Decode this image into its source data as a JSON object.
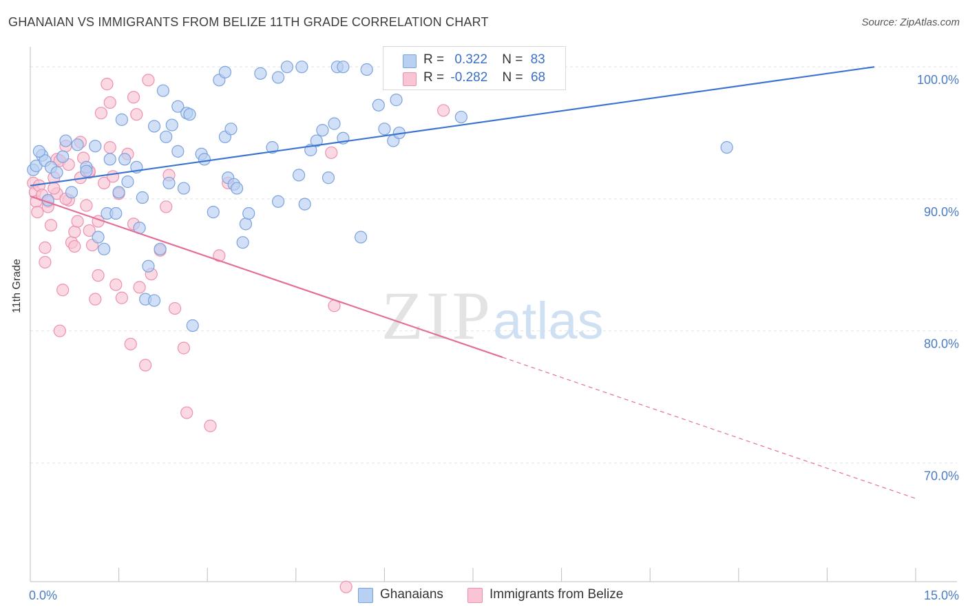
{
  "header": {
    "title": "GHANAIAN VS IMMIGRANTS FROM BELIZE 11TH GRADE CORRELATION CHART",
    "source": "Source: ZipAtlas.com"
  },
  "watermark": {
    "zip": "ZIP",
    "atlas": "atlas"
  },
  "legend": {
    "r_label": "R =",
    "n_label": "N =",
    "rows": [
      {
        "r": "0.322",
        "n": "83",
        "fill": "#b8d0f2",
        "stroke": "#7aa2dc"
      },
      {
        "r": "-0.282",
        "n": "68",
        "fill": "#f9c4d4",
        "stroke": "#ee8fae"
      }
    ]
  },
  "bottom_legend": [
    {
      "label": "Ghanaians",
      "fill": "#b8d0f2",
      "stroke": "#7aa2dc"
    },
    {
      "label": "Immigrants from Belize",
      "fill": "#f9c4d4",
      "stroke": "#ee8fae"
    }
  ],
  "chart_data": {
    "type": "scatter",
    "title": "GHANAIAN VS IMMIGRANTS FROM BELIZE 11TH GRADE CORRELATION CHART",
    "xlabel": "",
    "ylabel": "11th Grade",
    "xlim": [
      0,
      15
    ],
    "ylim": [
      61,
      101
    ],
    "x_tick_labels": [
      {
        "value": 0,
        "label": "0.0%"
      },
      {
        "value": 15,
        "label": "15.0%"
      }
    ],
    "y_tick_labels": [
      {
        "value": 100,
        "label": "100.0%"
      },
      {
        "value": 90,
        "label": "90.0%"
      },
      {
        "value": 80,
        "label": "80.0%"
      },
      {
        "value": 70,
        "label": "70.0%"
      }
    ],
    "grid": true,
    "legend_position": "top-center",
    "series": [
      {
        "name": "Ghanaians",
        "color": "#7aa2dc",
        "fill": "#b8d0f2",
        "trend": {
          "x": [
            0,
            14.3
          ],
          "y": [
            91.0,
            100.0
          ],
          "color": "#3a74cf"
        },
        "points": [
          [
            0.05,
            92.2
          ],
          [
            0.1,
            92.5
          ],
          [
            0.2,
            93.3
          ],
          [
            0.25,
            92.9
          ],
          [
            0.3,
            89.9
          ],
          [
            0.35,
            92.4
          ],
          [
            0.45,
            92.0
          ],
          [
            0.55,
            93.2
          ],
          [
            0.6,
            94.4
          ],
          [
            0.7,
            90.5
          ],
          [
            0.8,
            94.1
          ],
          [
            0.95,
            92.4
          ],
          [
            0.95,
            92.1
          ],
          [
            1.1,
            94.0
          ],
          [
            1.15,
            87.1
          ],
          [
            1.25,
            86.2
          ],
          [
            1.3,
            88.9
          ],
          [
            1.35,
            93.0
          ],
          [
            1.45,
            88.9
          ],
          [
            1.5,
            90.5
          ],
          [
            1.55,
            96.0
          ],
          [
            1.6,
            93.0
          ],
          [
            1.65,
            91.3
          ],
          [
            1.8,
            92.4
          ],
          [
            1.85,
            87.8
          ],
          [
            1.9,
            90.1
          ],
          [
            1.95,
            82.4
          ],
          [
            2.0,
            84.9
          ],
          [
            2.1,
            82.3
          ],
          [
            2.1,
            95.5
          ],
          [
            2.2,
            86.2
          ],
          [
            2.25,
            98.2
          ],
          [
            2.3,
            94.7
          ],
          [
            2.35,
            91.2
          ],
          [
            2.4,
            95.6
          ],
          [
            2.5,
            93.6
          ],
          [
            2.5,
            97.0
          ],
          [
            2.6,
            90.8
          ],
          [
            2.65,
            96.5
          ],
          [
            2.7,
            96.4
          ],
          [
            2.75,
            80.4
          ],
          [
            2.9,
            93.4
          ],
          [
            2.95,
            93.0
          ],
          [
            3.1,
            89.0
          ],
          [
            3.2,
            99.0
          ],
          [
            3.3,
            99.6
          ],
          [
            3.3,
            94.7
          ],
          [
            3.35,
            91.6
          ],
          [
            3.4,
            95.3
          ],
          [
            3.45,
            91.1
          ],
          [
            3.5,
            90.8
          ],
          [
            3.6,
            86.7
          ],
          [
            3.65,
            88.1
          ],
          [
            3.7,
            88.9
          ],
          [
            4.1,
            93.9
          ],
          [
            4.2,
            99.2
          ],
          [
            4.2,
            89.8
          ],
          [
            4.35,
            100.0
          ],
          [
            4.55,
            91.8
          ],
          [
            4.6,
            100.0
          ],
          [
            4.65,
            89.6
          ],
          [
            4.75,
            93.7
          ],
          [
            4.85,
            94.4
          ],
          [
            4.95,
            95.2
          ],
          [
            5.05,
            91.6
          ],
          [
            5.15,
            95.7
          ],
          [
            5.2,
            100.0
          ],
          [
            5.3,
            100.0
          ],
          [
            5.3,
            94.6
          ],
          [
            5.6,
            87.1
          ],
          [
            5.7,
            99.8
          ],
          [
            6.0,
            95.3
          ],
          [
            6.15,
            94.4
          ],
          [
            6.2,
            97.5
          ],
          [
            6.25,
            95.0
          ],
          [
            7.0,
            100.0
          ],
          [
            7.3,
            96.2
          ],
          [
            7.4,
            100.0
          ],
          [
            11.8,
            93.9
          ],
          [
            6.5,
            99.0
          ],
          [
            3.9,
            99.5
          ],
          [
            5.9,
            97.1
          ],
          [
            0.15,
            93.6
          ]
        ]
      },
      {
        "name": "Immigrants from Belize",
        "color": "#ee8fae",
        "fill": "#f9c4d4",
        "trend": {
          "solid": {
            "x": [
              0,
              8.0
            ],
            "y": [
              90.2,
              78.0
            ]
          },
          "dashed": {
            "x": [
              8.0,
              15.0
            ],
            "y": [
              78.0,
              67.3
            ]
          },
          "color": "#e36f98"
        },
        "points": [
          [
            0.05,
            91.2
          ],
          [
            0.08,
            90.5
          ],
          [
            0.1,
            89.8
          ],
          [
            0.12,
            89.0
          ],
          [
            0.15,
            91.0
          ],
          [
            0.2,
            90.3
          ],
          [
            0.25,
            85.2
          ],
          [
            0.25,
            86.3
          ],
          [
            0.3,
            89.8
          ],
          [
            0.35,
            88.0
          ],
          [
            0.4,
            91.6
          ],
          [
            0.45,
            90.4
          ],
          [
            0.45,
            93.0
          ],
          [
            0.5,
            80.0
          ],
          [
            0.5,
            92.9
          ],
          [
            0.55,
            83.1
          ],
          [
            0.6,
            94.0
          ],
          [
            0.65,
            92.6
          ],
          [
            0.65,
            89.9
          ],
          [
            0.7,
            86.7
          ],
          [
            0.75,
            87.5
          ],
          [
            0.75,
            86.4
          ],
          [
            0.8,
            88.3
          ],
          [
            0.85,
            91.6
          ],
          [
            0.9,
            93.1
          ],
          [
            0.95,
            89.5
          ],
          [
            1.0,
            87.6
          ],
          [
            1.0,
            92.0
          ],
          [
            1.05,
            86.5
          ],
          [
            1.1,
            82.4
          ],
          [
            1.15,
            84.2
          ],
          [
            1.15,
            88.3
          ],
          [
            1.2,
            96.5
          ],
          [
            1.25,
            91.2
          ],
          [
            1.3,
            98.7
          ],
          [
            1.35,
            97.3
          ],
          [
            1.35,
            93.9
          ],
          [
            1.4,
            91.7
          ],
          [
            1.45,
            83.5
          ],
          [
            1.5,
            90.4
          ],
          [
            1.55,
            82.5
          ],
          [
            1.65,
            93.4
          ],
          [
            1.7,
            79.0
          ],
          [
            1.75,
            97.7
          ],
          [
            1.75,
            88.1
          ],
          [
            1.8,
            96.4
          ],
          [
            1.85,
            83.3
          ],
          [
            1.95,
            77.4
          ],
          [
            2.0,
            99.0
          ],
          [
            2.05,
            84.3
          ],
          [
            2.2,
            86.1
          ],
          [
            2.3,
            89.4
          ],
          [
            2.35,
            91.8
          ],
          [
            2.45,
            81.7
          ],
          [
            2.6,
            78.7
          ],
          [
            2.65,
            73.8
          ],
          [
            3.05,
            72.8
          ],
          [
            3.2,
            85.7
          ],
          [
            3.35,
            91.2
          ],
          [
            5.1,
            93.5
          ],
          [
            5.15,
            81.9
          ],
          [
            5.35,
            60.6
          ],
          [
            7.0,
            96.7
          ],
          [
            0.3,
            89.4
          ],
          [
            0.6,
            90.0
          ],
          [
            1.0,
            92.1
          ],
          [
            0.4,
            90.8
          ],
          [
            0.85,
            94.3
          ]
        ]
      }
    ]
  }
}
